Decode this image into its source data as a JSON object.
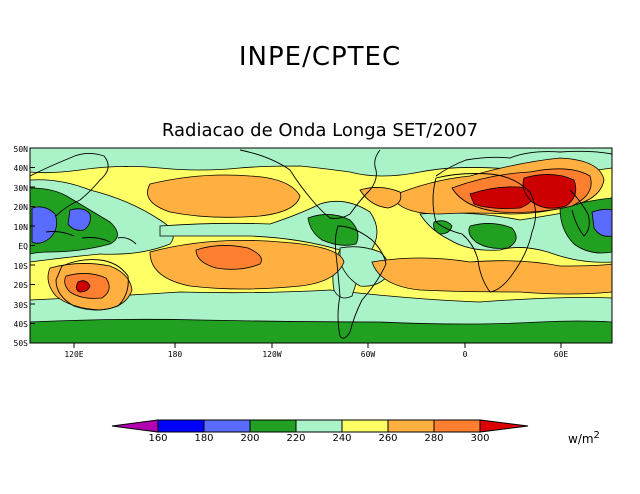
{
  "header": {
    "title": "INPE/CPTEC",
    "subtitle": "Radiacao de Onda Longa SET/2007"
  },
  "map": {
    "latitude_labels": [
      "50N",
      "40N",
      "30N",
      "20N",
      "10N",
      "EQ",
      "10S",
      "20S",
      "30S",
      "40S",
      "50S"
    ],
    "longitude_labels": [
      "120E",
      "180",
      "120W",
      "60W",
      "0",
      "60E"
    ]
  },
  "legend": {
    "values": [
      "160",
      "180",
      "200",
      "220",
      "240",
      "260",
      "280",
      "300"
    ],
    "units_text": "w/m",
    "units_exponent": "2",
    "colors": [
      "#b000b0",
      "#0000ff",
      "#5a6cff",
      "#22a022",
      "#aaf2c8",
      "#ffff66",
      "#ffb040",
      "#ff7f30",
      "#dd0000"
    ]
  }
}
